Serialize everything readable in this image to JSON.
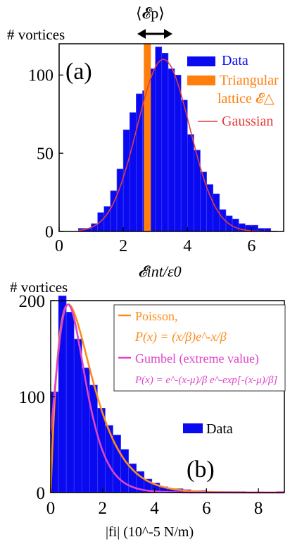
{
  "chart_data": [
    {
      "type": "bar",
      "panel_label": "(a)",
      "ylabel": "# vortices",
      "xlabel": "𝓔int/ε0",
      "top_annotation": "⟨𝓔p⟩",
      "xlim": [
        0,
        7
      ],
      "ylim": [
        0,
        120
      ],
      "xticks": [
        "0",
        "2",
        "4",
        "6"
      ],
      "yticks": [
        "0",
        "50",
        "100"
      ],
      "legend_placement": "top-right",
      "legend": {
        "data": "Data",
        "tri_line1": "Triangular",
        "tri_line2": "lattice 𝓔△",
        "gauss": "Gaussian"
      },
      "colors": {
        "bars": "#0a0af0",
        "triangular": "#ff7f0e",
        "gaussian": "#e33d3d"
      },
      "bin_width": 0.2,
      "bin_starts": [
        0.6,
        0.8,
        1.0,
        1.2,
        1.4,
        1.6,
        1.8,
        2.0,
        2.2,
        2.4,
        2.6,
        2.8,
        3.0,
        3.2,
        3.4,
        3.6,
        3.8,
        4.0,
        4.2,
        4.4,
        4.6,
        4.8,
        5.0,
        5.2,
        5.4,
        5.6,
        5.8,
        6.0,
        6.2,
        6.4
      ],
      "counts": [
        2,
        2,
        5,
        12,
        16,
        26,
        40,
        65,
        76,
        88,
        90,
        104,
        118,
        114,
        104,
        100,
        84,
        62,
        52,
        38,
        30,
        24,
        14,
        10,
        8,
        5,
        4,
        4,
        2,
        2
      ],
      "triangular_value": 2.75,
      "gaussian": {
        "mean": 3.25,
        "sd": 0.82,
        "peak": 110
      }
    },
    {
      "type": "bar",
      "panel_label": "(b)",
      "ylabel": "# vortices",
      "xlabel": "|fi| (10^-5 N/m)",
      "xlim": [
        0,
        9
      ],
      "ylim": [
        0,
        200
      ],
      "xticks": [
        "0",
        "2",
        "4",
        "6",
        "8"
      ],
      "yticks": [
        "0",
        "100",
        "200"
      ],
      "legend_placement": "top-right",
      "legend": {
        "poisson": "Poisson,",
        "poisson_eq": "P(x) = (x/β)e^-x/β",
        "gumbel": "Gumbel (extreme value)",
        "gumbel_eq": "P(x) = e^-(x-μ)/β e^-exp[-(x-μ)/β]",
        "data": "Data"
      },
      "colors": {
        "bars": "#0a0af0",
        "poisson": "#ff8c1a",
        "gumbel": "#dd44c8"
      },
      "bin_width": 0.3,
      "bin_starts": [
        0.0,
        0.3,
        0.6,
        0.9,
        1.2,
        1.5,
        1.8,
        2.1,
        2.4,
        2.7,
        3.0,
        3.3,
        3.6,
        3.9,
        4.2,
        4.5,
        4.8,
        5.1,
        5.4,
        5.7,
        6.0,
        6.3,
        6.6,
        6.9,
        7.2,
        7.5,
        7.8,
        8.1,
        8.4,
        8.7
      ],
      "counts": [
        105,
        205,
        188,
        160,
        130,
        112,
        88,
        70,
        60,
        45,
        30,
        22,
        14,
        10,
        6,
        4,
        4,
        3,
        2,
        2,
        1,
        1,
        1,
        1,
        1,
        0,
        0,
        0,
        0,
        1
      ],
      "poisson": {
        "beta": 0.68,
        "scale": 196
      },
      "gumbel": {
        "mu": 0.67,
        "beta": 0.55,
        "scale": 196
      }
    }
  ]
}
